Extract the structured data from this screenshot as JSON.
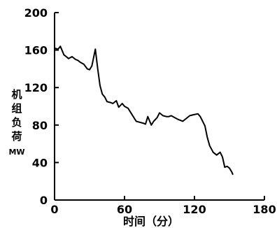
{
  "chart_data": {
    "type": "line",
    "title": "",
    "xlabel": "时间（分）",
    "ylabel_chars": [
      "机",
      "组",
      "负",
      "荷"
    ],
    "ylabel_unit": "MW",
    "xlim": [
      0,
      180
    ],
    "ylim": [
      0,
      200
    ],
    "xticks": [
      0,
      60,
      120,
      180
    ],
    "yticks": [
      0,
      40,
      80,
      120,
      160,
      200
    ],
    "grid": false,
    "series": [
      {
        "x": [
          0,
          3,
          5,
          8,
          10,
          12,
          15,
          18,
          20,
          22,
          25,
          28,
          30,
          32,
          35,
          37,
          39,
          41,
          43,
          45,
          48,
          50,
          53,
          55,
          58,
          60,
          63,
          66,
          70,
          73,
          76,
          78,
          80,
          83,
          85,
          88,
          90,
          93,
          96,
          98,
          100,
          103,
          106,
          108,
          110,
          113,
          116,
          119,
          123,
          125,
          127,
          129,
          131,
          133,
          136,
          139,
          142,
          144,
          146,
          148,
          150,
          152,
          153
        ],
        "y": [
          162,
          161,
          164,
          155,
          153,
          151,
          153,
          150,
          149,
          147,
          145,
          140,
          139,
          143,
          161,
          140,
          122,
          113,
          110,
          105,
          104,
          103,
          106,
          99,
          103,
          100,
          98,
          92,
          84,
          83,
          82,
          81,
          89,
          80,
          84,
          88,
          93,
          90,
          89,
          89,
          90,
          88,
          86,
          85,
          84,
          87,
          90,
          91,
          92,
          89,
          84,
          79,
          67,
          58,
          51,
          48,
          51,
          46,
          35,
          36,
          34,
          30,
          27
        ]
      }
    ]
  }
}
